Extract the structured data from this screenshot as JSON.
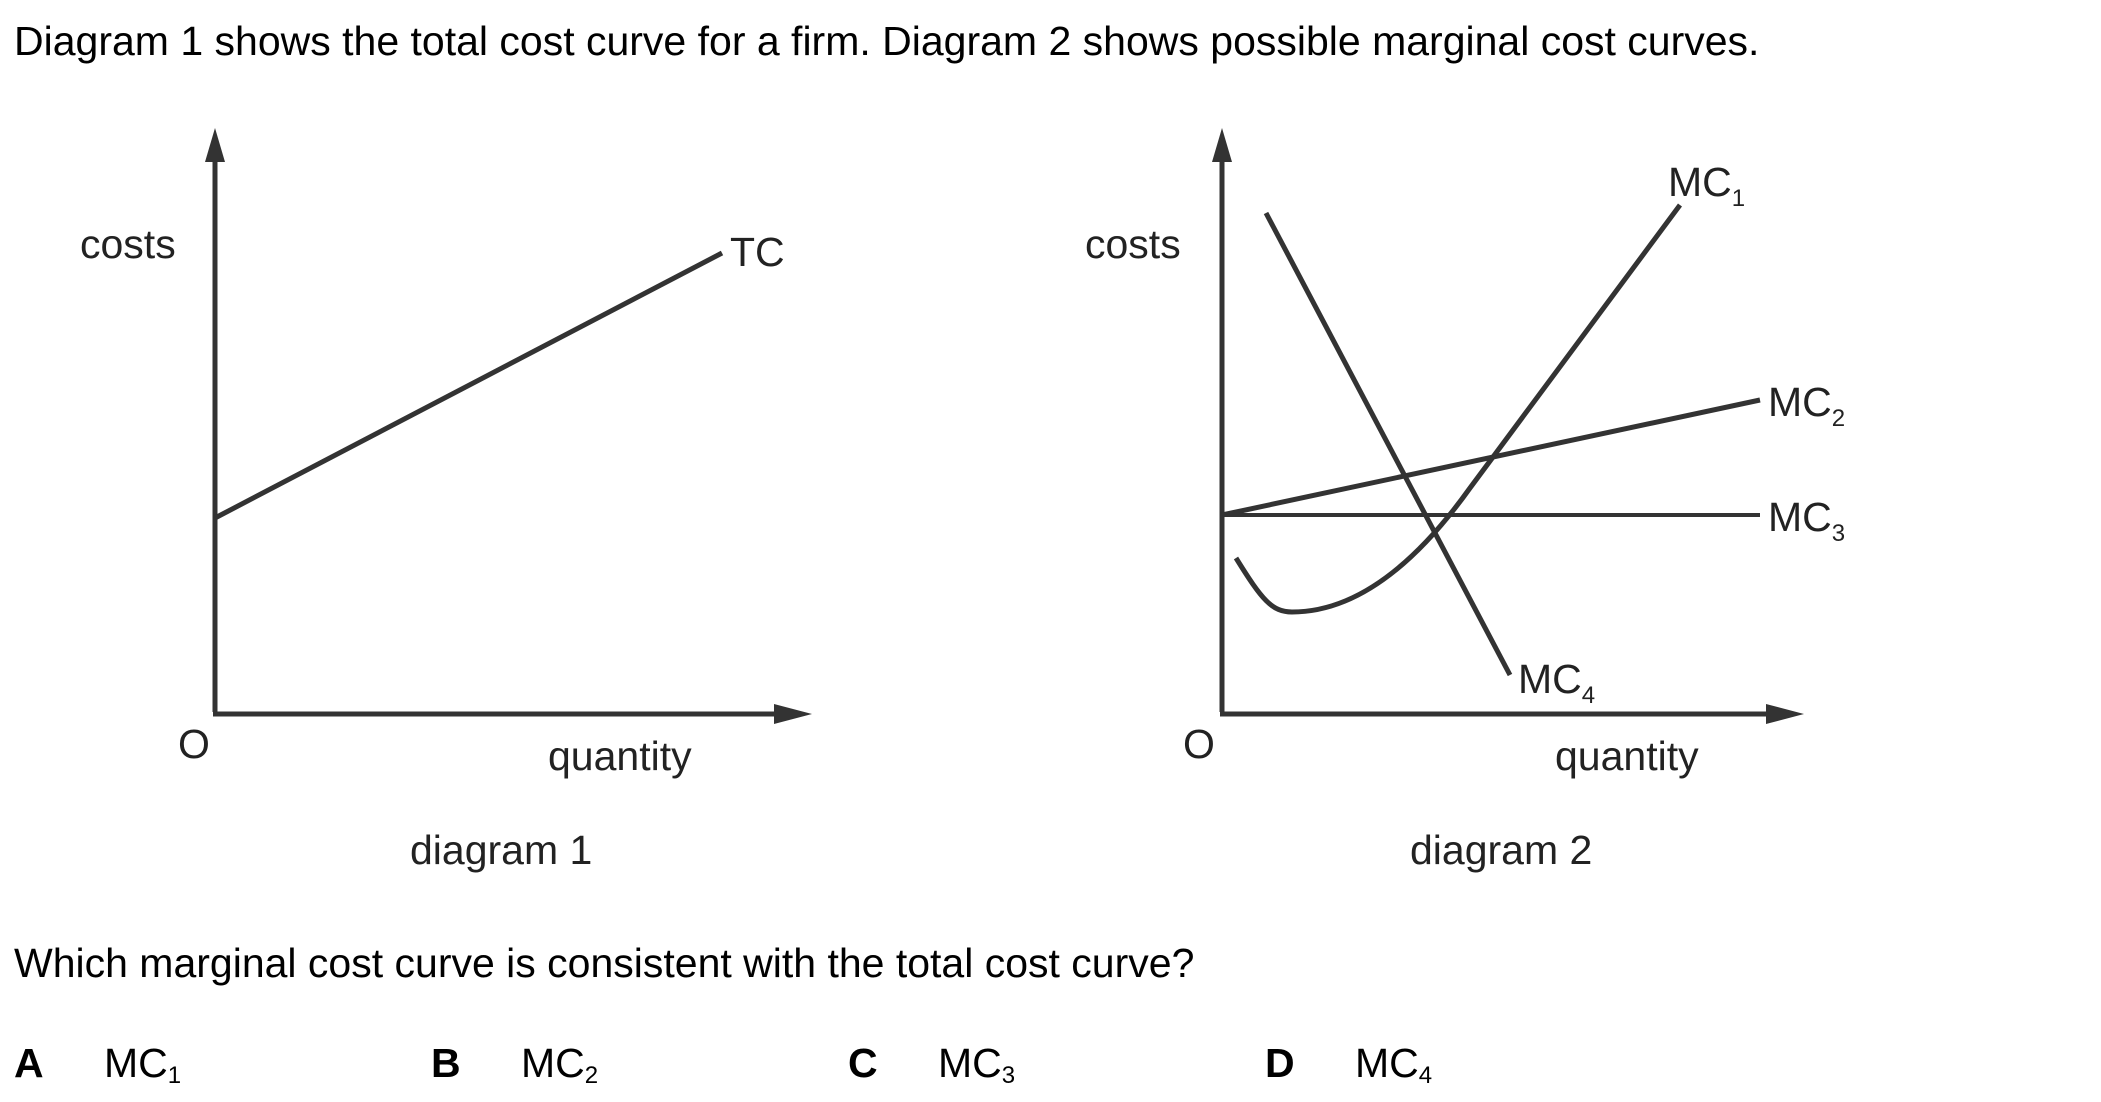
{
  "intro": "Diagram 1 shows the total cost curve for a firm. Diagram 2 shows possible marginal cost curves.",
  "diagram1": {
    "y_label": "costs",
    "x_label": "quantity",
    "origin": "O",
    "curve_label": "TC",
    "caption": "diagram 1"
  },
  "diagram2": {
    "y_label": "costs",
    "x_label": "quantity",
    "origin": "O",
    "caption": "diagram 2",
    "curves": [
      {
        "base": "MC",
        "sub": "1"
      },
      {
        "base": "MC",
        "sub": "2"
      },
      {
        "base": "MC",
        "sub": "3"
      },
      {
        "base": "MC",
        "sub": "4"
      }
    ]
  },
  "question": "Which marginal cost curve is consistent with the total cost curve?",
  "options": [
    {
      "letter": "A",
      "base": "MC",
      "sub": "1"
    },
    {
      "letter": "B",
      "base": "MC",
      "sub": "2"
    },
    {
      "letter": "C",
      "base": "MC",
      "sub": "3"
    },
    {
      "letter": "D",
      "base": "MC",
      "sub": "4"
    }
  ],
  "colors": {
    "line": "#333333",
    "text": "#222222"
  }
}
